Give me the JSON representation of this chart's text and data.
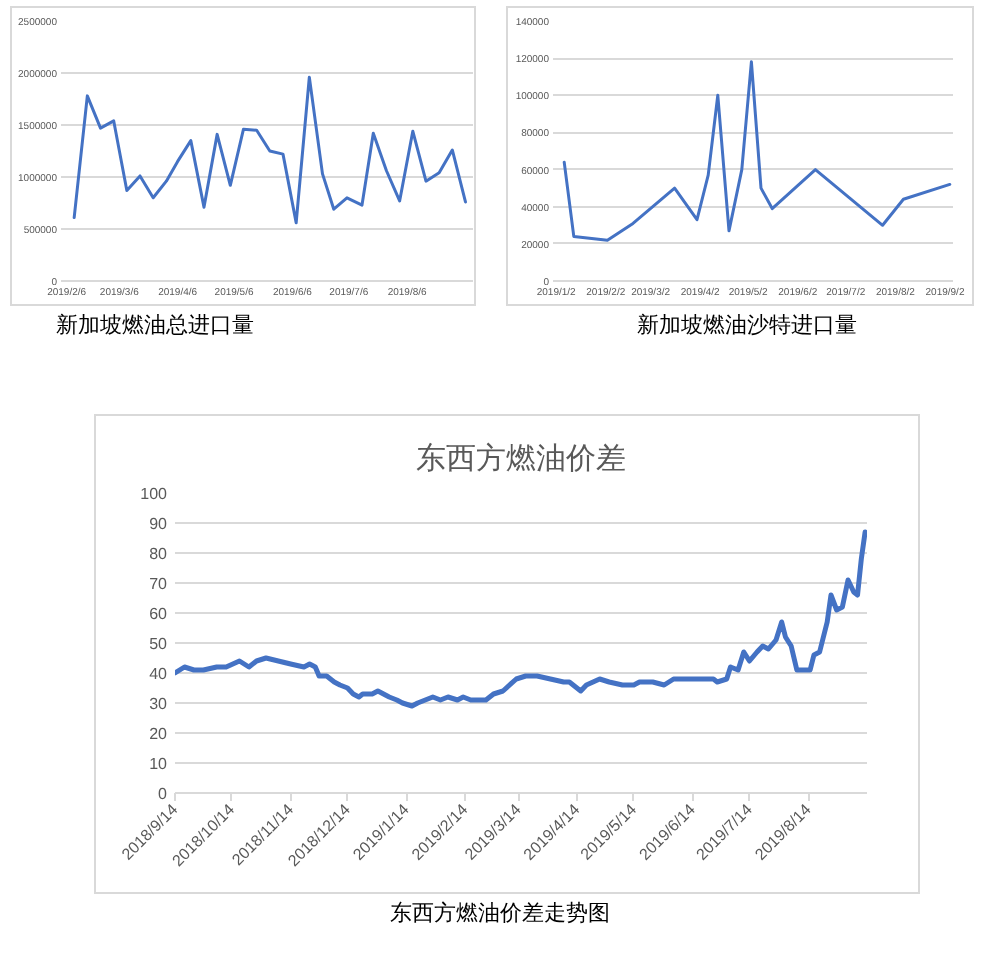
{
  "chart_data": [
    {
      "type": "line",
      "annotations": [
        "新加坡燃油总进口量"
      ],
      "color": "#4472c4",
      "grid": "y",
      "x": [
        "2019-02-10",
        "2019-02-17",
        "2019-02-24",
        "2019-03-03",
        "2019-03-10",
        "2019-03-17",
        "2019-03-24",
        "2019-03-31",
        "2019-04-06",
        "2019-04-13",
        "2019-04-20",
        "2019-04-27",
        "2019-05-04",
        "2019-05-11",
        "2019-05-18",
        "2019-05-25",
        "2019-06-01",
        "2019-06-08",
        "2019-06-15",
        "2019-06-22",
        "2019-06-28",
        "2019-07-05",
        "2019-07-13",
        "2019-07-19",
        "2019-07-26",
        "2019-08-02",
        "2019-08-09",
        "2019-08-16",
        "2019-08-23",
        "2019-08-30",
        "2019-09-06"
      ],
      "values": [
        610000,
        1780000,
        1470000,
        1540000,
        870000,
        1010000,
        800000,
        960000,
        1150000,
        1350000,
        710000,
        1410000,
        920000,
        1460000,
        1450000,
        1250000,
        1220000,
        560000,
        1960000,
        1030000,
        690000,
        800000,
        730000,
        1420000,
        1060000,
        770000,
        1440000,
        960000,
        1040000,
        1260000,
        760000
      ],
      "xlim": [
        "2019-02-03",
        "2019-09-10"
      ],
      "ylim": [
        0,
        2500000
      ],
      "xticks": [
        {
          "value": "2019-02-06",
          "label": "2019/2/6"
        },
        {
          "value": "2019-03-06",
          "label": "2019/3/6"
        },
        {
          "value": "2019-04-06",
          "label": "2019/4/6"
        },
        {
          "value": "2019-05-06",
          "label": "2019/5/6"
        },
        {
          "value": "2019-06-06",
          "label": "2019/6/6"
        },
        {
          "value": "2019-07-06",
          "label": "2019/7/6"
        },
        {
          "value": "2019-08-06",
          "label": "2019/8/6"
        }
      ],
      "yticks": [
        0,
        500000,
        1000000,
        1500000,
        2000000,
        2500000
      ]
    },
    {
      "type": "line",
      "annotations": [
        "新加坡燃油沙特进口量"
      ],
      "color": "#4472c4",
      "grid": "y",
      "x": [
        "2019-01-07",
        "2019-01-13",
        "2019-02-03",
        "2019-02-19",
        "2019-03-17",
        "2019-03-31",
        "2019-04-07",
        "2019-04-13",
        "2019-04-20",
        "2019-04-28",
        "2019-05-04",
        "2019-05-10",
        "2019-05-17",
        "2019-06-13",
        "2019-07-25",
        "2019-08-07",
        "2019-09-05"
      ],
      "values": [
        64000,
        24000,
        22000,
        31000,
        50000,
        33000,
        57000,
        100000,
        27000,
        60000,
        118000,
        50000,
        39000,
        60000,
        30000,
        44000,
        52000
      ],
      "xlim": [
        "2018-12-31",
        "2019-09-07"
      ],
      "ylim": [
        0,
        140000
      ],
      "xticks": [
        {
          "value": "2019-01-02",
          "label": "2019/1/2"
        },
        {
          "value": "2019-02-02",
          "label": "2019/2/2"
        },
        {
          "value": "2019-03-02",
          "label": "2019/3/2"
        },
        {
          "value": "2019-04-02",
          "label": "2019/4/2"
        },
        {
          "value": "2019-05-02",
          "label": "2019/5/2"
        },
        {
          "value": "2019-06-02",
          "label": "2019/6/2"
        },
        {
          "value": "2019-07-02",
          "label": "2019/7/2"
        },
        {
          "value": "2019-08-02",
          "label": "2019/8/2"
        },
        {
          "value": "2019-09-02",
          "label": "2019/9/2"
        }
      ],
      "yticks": [
        0,
        20000,
        40000,
        60000,
        80000,
        100000,
        120000,
        140000
      ]
    },
    {
      "type": "line",
      "title": "东西方燃油价差",
      "annotations": [
        "东西方燃油价差走势图"
      ],
      "color": "#4472c4",
      "grid": "y",
      "x": [
        "2018-09-14",
        "2018-09-19",
        "2018-09-24",
        "2018-09-29",
        "2018-10-06",
        "2018-10-11",
        "2018-10-18",
        "2018-10-23",
        "2018-10-27",
        "2018-11-01",
        "2018-11-14",
        "2018-11-21",
        "2018-11-24",
        "2018-11-27",
        "2018-11-29",
        "2018-12-03",
        "2018-12-07",
        "2018-12-10",
        "2018-12-14",
        "2018-12-17",
        "2018-12-20",
        "2018-12-22",
        "2018-12-27",
        "2018-12-30",
        "2019-01-02",
        "2019-01-05",
        "2019-01-09",
        "2019-01-12",
        "2019-01-17",
        "2019-01-20",
        "2019-01-24",
        "2019-01-28",
        "2019-02-01",
        "2019-02-05",
        "2019-02-10",
        "2019-02-13",
        "2019-02-17",
        "2019-02-22",
        "2019-02-25",
        "2019-03-01",
        "2019-03-06",
        "2019-03-13",
        "2019-03-18",
        "2019-03-24",
        "2019-03-31",
        "2019-04-07",
        "2019-04-10",
        "2019-04-16",
        "2019-04-19",
        "2019-04-26",
        "2019-05-01",
        "2019-05-08",
        "2019-05-14",
        "2019-05-17",
        "2019-05-24",
        "2019-05-30",
        "2019-06-04",
        "2019-06-11",
        "2019-06-18",
        "2019-06-25",
        "2019-06-27",
        "2019-07-02",
        "2019-07-04",
        "2019-07-08",
        "2019-07-11",
        "2019-07-14",
        "2019-07-18",
        "2019-07-21",
        "2019-07-24",
        "2019-07-28",
        "2019-07-31",
        "2019-08-02",
        "2019-08-05",
        "2019-08-08",
        "2019-08-11",
        "2019-08-15",
        "2019-08-17",
        "2019-08-20",
        "2019-08-24",
        "2019-08-26",
        "2019-08-29",
        "2019-09-01",
        "2019-09-04",
        "2019-09-07",
        "2019-09-09",
        "2019-09-11",
        "2019-09-13"
      ],
      "values": [
        40,
        42,
        41,
        41,
        42,
        42,
        44,
        42,
        44,
        45,
        43,
        42,
        43,
        42,
        39,
        39,
        37,
        36,
        35,
        33,
        32,
        33,
        33,
        34,
        33,
        32,
        31,
        30,
        29,
        30,
        31,
        32,
        31,
        32,
        31,
        32,
        31,
        31,
        31,
        33,
        34,
        38,
        39,
        39,
        38,
        37,
        37,
        34,
        36,
        38,
        37,
        36,
        36,
        37,
        37,
        36,
        38,
        38,
        38,
        38,
        37,
        38,
        42,
        41,
        47,
        44,
        47,
        49,
        48,
        51,
        57,
        52,
        49,
        41,
        41,
        41,
        46,
        47,
        57,
        66,
        61,
        62,
        71,
        67,
        66,
        78,
        87
      ],
      "xlim": [
        "2018-09-14",
        "2019-09-14"
      ],
      "ylim": [
        0,
        100
      ],
      "xticks": [
        {
          "value": "2018-09-14",
          "label": "2018/9/14"
        },
        {
          "value": "2018-10-14",
          "label": "2018/10/14"
        },
        {
          "value": "2018-11-14",
          "label": "2018/11/14"
        },
        {
          "value": "2018-12-14",
          "label": "2018/12/14"
        },
        {
          "value": "2019-01-14",
          "label": "2019/1/14"
        },
        {
          "value": "2019-02-14",
          "label": "2019/2/14"
        },
        {
          "value": "2019-03-14",
          "label": "2019/3/14"
        },
        {
          "value": "2019-04-14",
          "label": "2019/4/14"
        },
        {
          "value": "2019-05-14",
          "label": "2019/5/14"
        },
        {
          "value": "2019-06-14",
          "label": "2019/6/14"
        },
        {
          "value": "2019-07-14",
          "label": "2019/7/14"
        },
        {
          "value": "2019-08-14",
          "label": "2019/8/14"
        }
      ],
      "yticks": [
        0,
        10,
        20,
        30,
        40,
        50,
        60,
        70,
        80,
        90,
        100
      ]
    }
  ]
}
